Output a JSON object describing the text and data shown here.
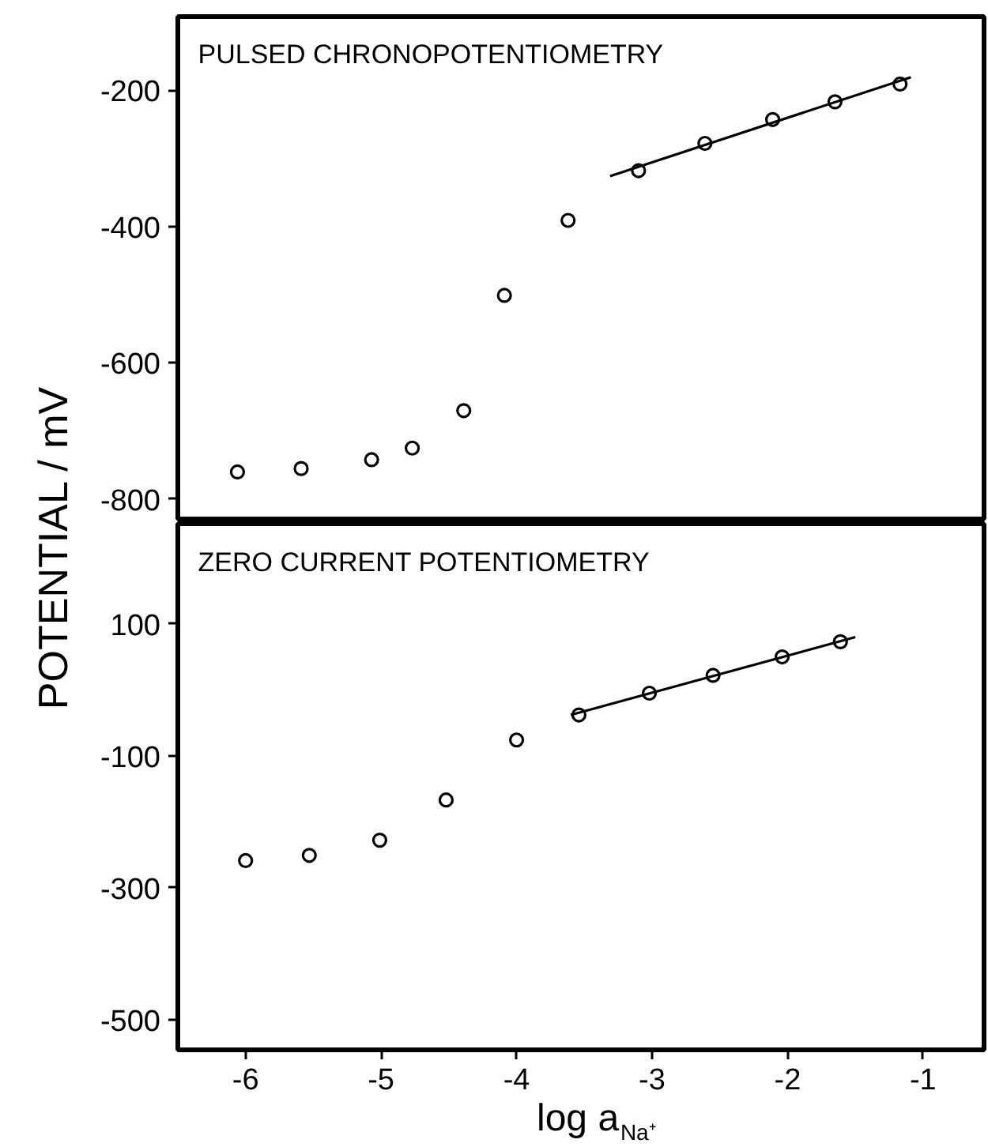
{
  "chart_data": [
    {
      "type": "scatter",
      "title": "PULSED CHRONOPOTENTIOMETRY",
      "ylabel": "POTENTIAL / mV",
      "grid": false,
      "tick_labels": "y",
      "xlim": [
        -6.5,
        -0.55
      ],
      "ylim": [
        -829,
        -92
      ],
      "yticks": [
        -200,
        -400,
        -600,
        -800
      ],
      "series": [
        {
          "color": "#000000",
          "marker": "circle",
          "x": [
            -6.06,
            -5.59,
            -5.07,
            -4.77,
            -4.39,
            -4.09,
            -3.62,
            -3.1,
            -2.61,
            -2.11,
            -1.65,
            -1.17
          ],
          "values": [
            -760,
            -755,
            -742,
            -725,
            -670,
            -501,
            -391,
            -318,
            -278,
            -243,
            -217,
            -191
          ]
        },
        {
          "type": "line",
          "marker": "none",
          "color": "#000000",
          "x": [
            -3.31,
            -1.09
          ],
          "values": [
            -326,
            -181
          ]
        }
      ]
    },
    {
      "type": "scatter",
      "title": "ZERO CURRENT POTENTIOMETRY",
      "xlabel": "log a$_{Na⁺}$",
      "grid": false,
      "xlim": [
        -6.5,
        -0.55
      ],
      "ylim": [
        -546,
        252
      ],
      "xticks": [
        -6,
        -5,
        -4,
        -3,
        -2,
        -1
      ],
      "yticks": [
        100,
        -100,
        -300,
        -500
      ],
      "series": [
        {
          "color": "#000000",
          "marker": "circle",
          "x": [
            -6.0,
            -5.53,
            -5.01,
            -4.52,
            -4.0,
            -3.54,
            -3.02,
            -2.55,
            -2.04,
            -1.61
          ],
          "values": [
            -259,
            -251,
            -228,
            -167,
            -76,
            -38,
            -5,
            22,
            50,
            73
          ]
        },
        {
          "type": "line",
          "marker": "none",
          "color": "#000000",
          "x": [
            -3.6,
            -1.5
          ],
          "values": [
            -38,
            80
          ]
        }
      ]
    }
  ]
}
